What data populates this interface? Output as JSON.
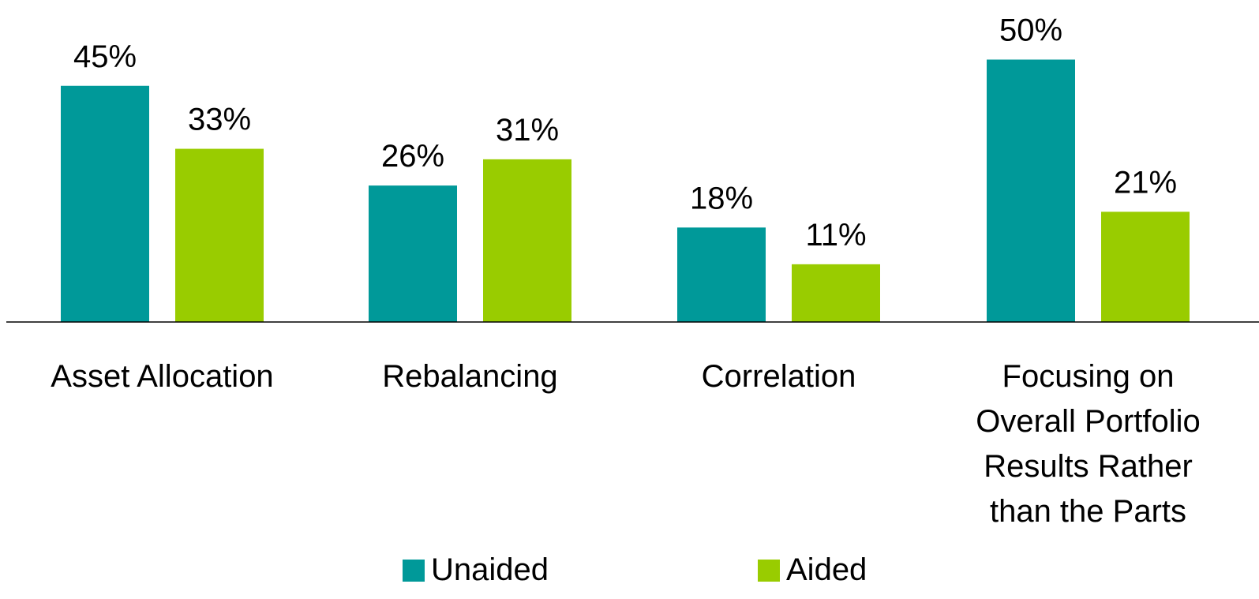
{
  "chart_data": {
    "type": "bar",
    "title": "",
    "xlabel": "",
    "ylabel": "",
    "ylim": [
      0,
      50
    ],
    "grid": false,
    "legend_position": "bottom",
    "categories": [
      [
        "Asset Allocation"
      ],
      [
        "Rebalancing"
      ],
      [
        "Correlation"
      ],
      [
        "Focusing on",
        "Overall Portfolio",
        "Results Rather",
        "than the Parts"
      ]
    ],
    "series": [
      {
        "name": "Unaided",
        "color": "#009999",
        "values": [
          45,
          26,
          18,
          50
        ],
        "labels": [
          "45%",
          "26%",
          "18%",
          "50%"
        ]
      },
      {
        "name": "Aided",
        "color": "#99cc00",
        "values": [
          33,
          31,
          11,
          21
        ],
        "labels": [
          "33%",
          "31%",
          "11%",
          "21%"
        ]
      }
    ]
  }
}
